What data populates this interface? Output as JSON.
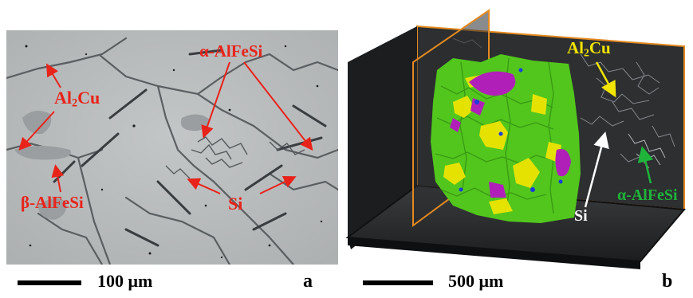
{
  "panel_a": {
    "labels": {
      "al2cu_main": "Al",
      "al2cu_sub": "2",
      "al2cu_tail": "Cu",
      "alpha": "α-AlFeSi",
      "beta": "β-AlFeSi",
      "si": "Si"
    },
    "scale_text": "100 μm",
    "tag": "a"
  },
  "panel_b": {
    "labels": {
      "al2cu_main": "Al",
      "al2cu_sub": "2",
      "al2cu_tail": "Cu",
      "alpha": "α-AlFeSi",
      "si": "Si"
    },
    "scale_text": "500 μm",
    "tag": "b"
  },
  "colors": {
    "annotation_red": "#e8231a",
    "al2cu_yellow": "#f2e500",
    "alpha_green": "#1fb43a",
    "si_white": "#ffffff",
    "plane_orange": "#e58a1f",
    "green_phase": "#52c61d",
    "purple_phase": "#b020b8"
  }
}
